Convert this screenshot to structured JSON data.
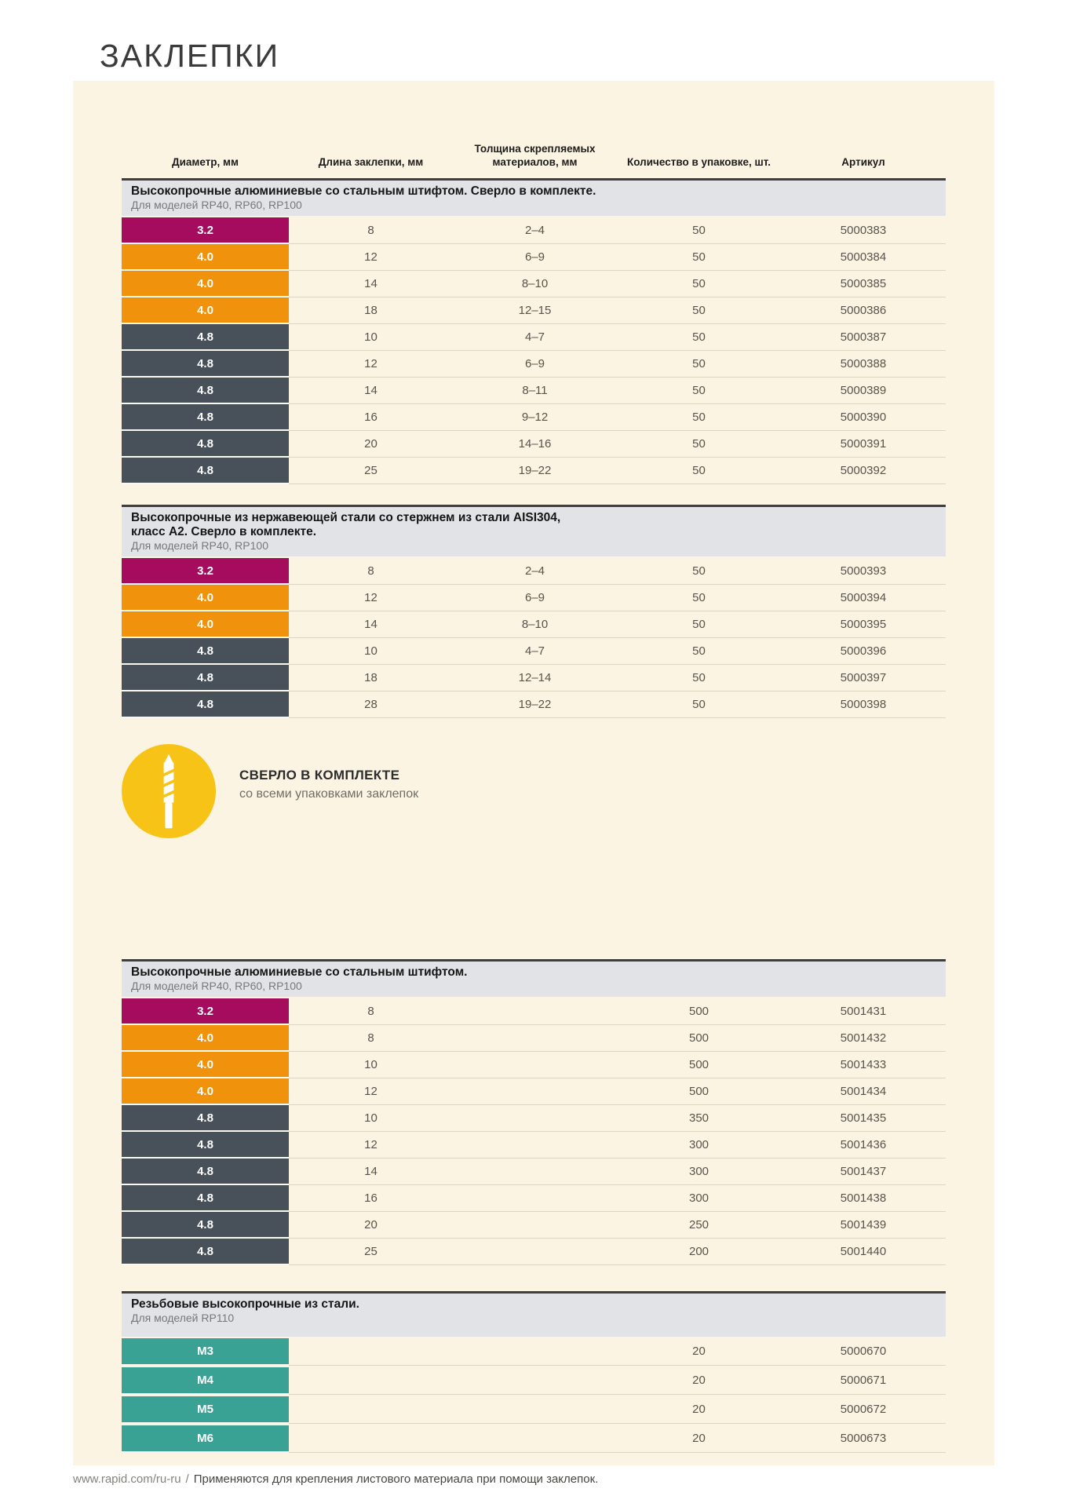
{
  "page": {
    "title": "ЗАКЛЕПКИ"
  },
  "colors": {
    "magenta": "#a50c5e",
    "orange": "#f0920c",
    "slate": "#48505a",
    "teal": "#3aa294",
    "accent_yellow": "#f7c317",
    "panel_cream": "#fcf4e2",
    "band_gray": "#e2e3e6"
  },
  "columns": [
    "Диаметр, мм",
    "Длина заклепки, мм",
    "Толщина скрепляемых материалов, мм",
    "Количество в упаковке, шт.",
    "Артикул"
  ],
  "badge": {
    "title": "СВЕРЛО В КОМПЛЕКТЕ",
    "subtitle": "со всеми упаковками заклепок",
    "icon": "drill-bit-icon"
  },
  "tables": [
    {
      "title_lines": [
        "Высокопрочные алюминиевые со стальным штифтом. Сверло в комплекте."
      ],
      "subtitle": "Для моделей RP40, RP60, RP100",
      "rows": [
        {
          "diameter": "3.2",
          "color": "magenta",
          "length": "8",
          "thickness": "2–4",
          "qty": "50",
          "article": "5000383"
        },
        {
          "diameter": "4.0",
          "color": "orange",
          "length": "12",
          "thickness": "6–9",
          "qty": "50",
          "article": "5000384"
        },
        {
          "diameter": "4.0",
          "color": "orange",
          "length": "14",
          "thickness": "8–10",
          "qty": "50",
          "article": "5000385"
        },
        {
          "diameter": "4.0",
          "color": "orange",
          "length": "18",
          "thickness": "12–15",
          "qty": "50",
          "article": "5000386"
        },
        {
          "diameter": "4.8",
          "color": "slate",
          "length": "10",
          "thickness": "4–7",
          "qty": "50",
          "article": "5000387"
        },
        {
          "diameter": "4.8",
          "color": "slate",
          "length": "12",
          "thickness": "6–9",
          "qty": "50",
          "article": "5000388"
        },
        {
          "diameter": "4.8",
          "color": "slate",
          "length": "14",
          "thickness": "8–11",
          "qty": "50",
          "article": "5000389"
        },
        {
          "diameter": "4.8",
          "color": "slate",
          "length": "16",
          "thickness": "9–12",
          "qty": "50",
          "article": "5000390"
        },
        {
          "diameter": "4.8",
          "color": "slate",
          "length": "20",
          "thickness": "14–16",
          "qty": "50",
          "article": "5000391"
        },
        {
          "diameter": "4.8",
          "color": "slate",
          "length": "25",
          "thickness": "19–22",
          "qty": "50",
          "article": "5000392"
        }
      ]
    },
    {
      "title_lines": [
        "Высокопрочные из нержавеющей стали со стержнем из стали AISI304,",
        "класс А2. Сверло в комплекте."
      ],
      "subtitle": "Для моделей RP40, RP100",
      "rows": [
        {
          "diameter": "3.2",
          "color": "magenta",
          "length": "8",
          "thickness": "2–4",
          "qty": "50",
          "article": "5000393"
        },
        {
          "diameter": "4.0",
          "color": "orange",
          "length": "12",
          "thickness": "6–9",
          "qty": "50",
          "article": "5000394"
        },
        {
          "diameter": "4.0",
          "color": "orange",
          "length": "14",
          "thickness": "8–10",
          "qty": "50",
          "article": "5000395"
        },
        {
          "diameter": "4.8",
          "color": "slate",
          "length": "10",
          "thickness": "4–7",
          "qty": "50",
          "article": "5000396"
        },
        {
          "diameter": "4.8",
          "color": "slate",
          "length": "18",
          "thickness": "12–14",
          "qty": "50",
          "article": "5000397"
        },
        {
          "diameter": "4.8",
          "color": "slate",
          "length": "28",
          "thickness": "19–22",
          "qty": "50",
          "article": "5000398"
        }
      ]
    },
    {
      "title_lines": [
        "Высокопрочные алюминиевые со стальным штифтом."
      ],
      "subtitle": "Для моделей RP40, RP60, RP100",
      "rows": [
        {
          "diameter": "3.2",
          "color": "magenta",
          "length": "8",
          "thickness": "",
          "qty": "500",
          "article": "5001431"
        },
        {
          "diameter": "4.0",
          "color": "orange",
          "length": "8",
          "thickness": "",
          "qty": "500",
          "article": "5001432"
        },
        {
          "diameter": "4.0",
          "color": "orange",
          "length": "10",
          "thickness": "",
          "qty": "500",
          "article": "5001433"
        },
        {
          "diameter": "4.0",
          "color": "orange",
          "length": "12",
          "thickness": "",
          "qty": "500",
          "article": "5001434"
        },
        {
          "diameter": "4.8",
          "color": "slate",
          "length": "10",
          "thickness": "",
          "qty": "350",
          "article": "5001435"
        },
        {
          "diameter": "4.8",
          "color": "slate",
          "length": "12",
          "thickness": "",
          "qty": "300",
          "article": "5001436"
        },
        {
          "diameter": "4.8",
          "color": "slate",
          "length": "14",
          "thickness": "",
          "qty": "300",
          "article": "5001437"
        },
        {
          "diameter": "4.8",
          "color": "slate",
          "length": "16",
          "thickness": "",
          "qty": "300",
          "article": "5001438"
        },
        {
          "diameter": "4.8",
          "color": "slate",
          "length": "20",
          "thickness": "",
          "qty": "250",
          "article": "5001439"
        },
        {
          "diameter": "4.8",
          "color": "slate",
          "length": "25",
          "thickness": "",
          "qty": "200",
          "article": "5001440"
        }
      ]
    },
    {
      "title_lines": [
        "Резьбовые высокопрочные из стали."
      ],
      "subtitle": "Для моделей RP110",
      "rows": [
        {
          "diameter": "M3",
          "color": "teal",
          "length": "",
          "thickness": "",
          "qty": "20",
          "article": "5000670"
        },
        {
          "diameter": "M4",
          "color": "teal",
          "length": "",
          "thickness": "",
          "qty": "20",
          "article": "5000671"
        },
        {
          "diameter": "M5",
          "color": "teal",
          "length": "",
          "thickness": "",
          "qty": "20",
          "article": "5000672"
        },
        {
          "diameter": "M6",
          "color": "teal",
          "length": "",
          "thickness": "",
          "qty": "20",
          "article": "5000673"
        }
      ]
    }
  ],
  "footer": {
    "url": "www.rapid.com/ru-ru",
    "separator": "/",
    "note": "Применяются для крепления листового материала при помощи заклепок."
  }
}
